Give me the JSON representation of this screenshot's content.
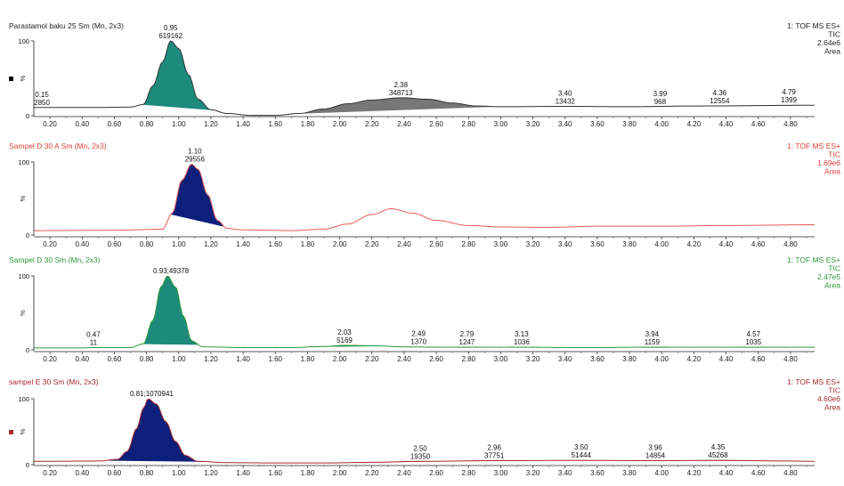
{
  "chart_data": [
    {
      "type": "line",
      "title": "Parastamol baku 25 Sm (Mn, 2x3)",
      "title_color": "#222222",
      "trace_color": "#333333",
      "info": [
        "1: TOF MS ES+",
        "TIC",
        "2.64e6",
        "Area"
      ],
      "info_color": "#222222",
      "marker_color": "#000000",
      "xlim": [
        0.1,
        4.95
      ],
      "ylim": [
        0,
        100
      ],
      "yticks": [
        "100",
        "0"
      ],
      "ylabel": "%",
      "xticks": [
        "0.20",
        "0.40",
        "0.60",
        "0.80",
        "1.00",
        "1.20",
        "1.40",
        "1.60",
        "1.80",
        "2.00",
        "2.20",
        "2.40",
        "2.60",
        "2.80",
        "3.00",
        "3.20",
        "3.40",
        "3.60",
        "3.80",
        "4.00",
        "4.20",
        "4.40",
        "4.60",
        "4.80"
      ],
      "trace": [
        [
          0.1,
          11
        ],
        [
          0.5,
          11
        ],
        [
          0.7,
          11.5
        ],
        [
          0.78,
          15
        ],
        [
          0.84,
          40
        ],
        [
          0.9,
          72
        ],
        [
          0.95,
          100
        ],
        [
          1.0,
          90
        ],
        [
          1.06,
          55
        ],
        [
          1.12,
          22
        ],
        [
          1.2,
          8
        ],
        [
          1.3,
          3
        ],
        [
          1.45,
          0.5
        ],
        [
          1.6,
          0.5
        ],
        [
          1.75,
          3
        ],
        [
          1.9,
          9
        ],
        [
          2.05,
          16
        ],
        [
          2.2,
          21
        ],
        [
          2.38,
          24
        ],
        [
          2.55,
          22
        ],
        [
          2.7,
          17
        ],
        [
          2.85,
          13
        ],
        [
          3.0,
          12
        ],
        [
          3.4,
          12.5
        ],
        [
          3.8,
          12
        ],
        [
          4.2,
          13
        ],
        [
          4.95,
          14
        ]
      ],
      "fills": [
        {
          "range": [
            0.78,
            1.22
          ],
          "color": "#1d8a7c"
        },
        {
          "range": [
            1.75,
            2.95
          ],
          "color": "#777777"
        },
        {
          "range": [
            3.25,
            3.55
          ],
          "color": "#c8742a"
        },
        {
          "range": [
            3.9,
            4.1
          ],
          "color": "#444444"
        },
        {
          "range": [
            4.2,
            4.6
          ],
          "color": "#444444"
        },
        {
          "range": [
            4.65,
            4.9
          ],
          "color": "#444444"
        }
      ],
      "peaks": [
        {
          "x": 0.15,
          "y": 11,
          "rt": "0.15",
          "area": "2850"
        },
        {
          "x": 0.95,
          "y": 100,
          "rt": "0.95",
          "area": "619162"
        },
        {
          "x": 2.38,
          "y": 24,
          "rt": "2.38",
          "area": "348713"
        },
        {
          "x": 3.4,
          "y": 12.5,
          "rt": "3.40",
          "area": "13432"
        },
        {
          "x": 3.99,
          "y": 12,
          "rt": "3.99",
          "area": "968"
        },
        {
          "x": 4.36,
          "y": 13,
          "rt": "4.36",
          "area": "12554"
        },
        {
          "x": 4.79,
          "y": 14,
          "rt": "4.79",
          "area": "1399"
        }
      ]
    },
    {
      "type": "line",
      "title": "Sampel D 30 A Sm (Mn, 2x3)",
      "title_color": "#e0403a",
      "trace_color": "#e85a55",
      "info": [
        "1: TOF MS ES+",
        "TIC",
        "1.69e6",
        "Area"
      ],
      "info_color": "#e0403a",
      "marker_color": "",
      "xlim": [
        0.1,
        4.95
      ],
      "ylim": [
        0,
        100
      ],
      "yticks": [
        "100",
        "0"
      ],
      "ylabel": "%",
      "xticks": [
        "0.20",
        "0.40",
        "0.60",
        "0.80",
        "1.00",
        "1.20",
        "1.40",
        "1.60",
        "1.80",
        "2.00",
        "2.20",
        "2.40",
        "2.60",
        "2.80",
        "3.00",
        "3.20",
        "3.40",
        "3.60",
        "3.80",
        "4.00",
        "4.20",
        "4.40",
        "4.60",
        "4.80"
      ],
      "trace": [
        [
          0.1,
          6
        ],
        [
          0.6,
          6.5
        ],
        [
          0.9,
          8
        ],
        [
          0.96,
          30
        ],
        [
          1.02,
          75
        ],
        [
          1.08,
          97
        ],
        [
          1.12,
          90
        ],
        [
          1.18,
          55
        ],
        [
          1.24,
          20
        ],
        [
          1.3,
          9
        ],
        [
          1.4,
          7
        ],
        [
          1.7,
          6
        ],
        [
          1.9,
          8
        ],
        [
          2.05,
          15
        ],
        [
          2.2,
          28
        ],
        [
          2.32,
          36
        ],
        [
          2.45,
          30
        ],
        [
          2.6,
          20
        ],
        [
          2.8,
          13
        ],
        [
          3.0,
          11
        ],
        [
          3.3,
          10.5
        ],
        [
          3.6,
          12
        ],
        [
          4.0,
          12
        ],
        [
          4.4,
          13
        ],
        [
          4.95,
          14
        ]
      ],
      "fills": [
        {
          "range": [
            0.95,
            1.28
          ],
          "color": "#0c1f7a"
        }
      ],
      "peaks": [
        {
          "x": 1.1,
          "y": 97,
          "rt": "1.10",
          "area": "29556"
        }
      ]
    },
    {
      "type": "line",
      "title": "Sampel D 30 Sm (Mn, 2x3)",
      "title_color": "#2e9a3a",
      "trace_color": "#2e9a3a",
      "info": [
        "1: TOF MS ES+",
        "TIC",
        "2.47e5",
        "Area"
      ],
      "info_color": "#2e9a3a",
      "marker_color": "",
      "xlim": [
        0.1,
        4.95
      ],
      "ylim": [
        0,
        100
      ],
      "yticks": [
        "100",
        "0"
      ],
      "ylabel": "%",
      "xticks": [
        "0.20",
        "0.40",
        "0.60",
        "0.80",
        "1.00",
        "1.20",
        "1.40",
        "1.60",
        "1.80",
        "2.00",
        "2.20",
        "2.40",
        "2.60",
        "2.80",
        "3.00",
        "3.20",
        "3.40",
        "3.60",
        "3.80",
        "4.00",
        "4.20",
        "4.40",
        "4.60",
        "4.80"
      ],
      "trace": [
        [
          0.1,
          2.5
        ],
        [
          0.4,
          2.5
        ],
        [
          0.47,
          3
        ],
        [
          0.7,
          3
        ],
        [
          0.78,
          8
        ],
        [
          0.84,
          40
        ],
        [
          0.89,
          85
        ],
        [
          0.93,
          100
        ],
        [
          0.98,
          85
        ],
        [
          1.03,
          45
        ],
        [
          1.08,
          12
        ],
        [
          1.15,
          4
        ],
        [
          1.4,
          3
        ],
        [
          1.7,
          3
        ],
        [
          1.9,
          4.5
        ],
        [
          2.03,
          6
        ],
        [
          2.2,
          5.5
        ],
        [
          2.4,
          4
        ],
        [
          2.6,
          3.5
        ],
        [
          2.8,
          3.5
        ],
        [
          3.1,
          3.5
        ],
        [
          3.5,
          3
        ],
        [
          3.94,
          3.5
        ],
        [
          4.57,
          3.5
        ],
        [
          4.95,
          3.5
        ]
      ],
      "fills": [
        {
          "range": [
            0.78,
            1.12
          ],
          "color": "#1d8a7c"
        },
        {
          "range": [
            1.85,
            2.25
          ],
          "color": "#2e8a3a"
        },
        {
          "range": [
            2.4,
            2.6
          ],
          "color": "#c8742a"
        },
        {
          "range": [
            2.7,
            2.9
          ],
          "color": "#c8742a"
        },
        {
          "range": [
            3.05,
            3.25
          ],
          "color": "#444444"
        },
        {
          "range": [
            3.85,
            4.05
          ],
          "color": "#444444"
        },
        {
          "range": [
            4.45,
            4.65
          ],
          "color": "#444444"
        }
      ],
      "peaks": [
        {
          "x": 0.47,
          "y": 3,
          "rt": "0.47",
          "area": "11"
        },
        {
          "x": 0.93,
          "y": 100,
          "rt": "0.93",
          "area": "49378",
          "inline": true
        },
        {
          "x": 2.03,
          "y": 6,
          "rt": "2.03",
          "area": "5169"
        },
        {
          "x": 2.49,
          "y": 4,
          "rt": "2.49",
          "area": "1370"
        },
        {
          "x": 2.79,
          "y": 3.5,
          "rt": "2.79",
          "area": "1247"
        },
        {
          "x": 3.13,
          "y": 3.5,
          "rt": "3.13",
          "area": "1036"
        },
        {
          "x": 3.94,
          "y": 3.5,
          "rt": "3.94",
          "area": "1159"
        },
        {
          "x": 4.57,
          "y": 3.5,
          "rt": "4.57",
          "area": "1035"
        }
      ]
    },
    {
      "type": "line",
      "title": "sampel E 30 Sm (Mn, 2x3)",
      "title_color": "#a82a2a",
      "trace_color": "#a82a2a",
      "info": [
        "1: TOF MS ES+",
        "TIC",
        "4.60e6",
        "Area"
      ],
      "info_color": "#a82a2a",
      "marker_color": "#a82a2a",
      "xlim": [
        0.1,
        4.95
      ],
      "ylim": [
        0,
        100
      ],
      "yticks": [
        "100",
        "0"
      ],
      "ylabel": "%",
      "xticks": [
        "0.20",
        "0.40",
        "0.60",
        "0.80",
        "1.00",
        "1.20",
        "1.40",
        "1.60",
        "1.80",
        "2.00",
        "2.20",
        "2.40",
        "2.60",
        "2.80",
        "3.00",
        "3.20",
        "3.40",
        "3.60",
        "3.80",
        "4.00",
        "4.20",
        "4.40",
        "4.60",
        "4.80"
      ],
      "trace": [
        [
          0.1,
          5
        ],
        [
          0.5,
          5.5
        ],
        [
          0.62,
          8
        ],
        [
          0.68,
          20
        ],
        [
          0.74,
          55
        ],
        [
          0.78,
          85
        ],
        [
          0.81,
          100
        ],
        [
          0.86,
          92
        ],
        [
          0.92,
          65
        ],
        [
          0.98,
          35
        ],
        [
          1.04,
          14
        ],
        [
          1.12,
          5
        ],
        [
          1.3,
          3
        ],
        [
          1.6,
          2.5
        ],
        [
          1.9,
          2.5
        ],
        [
          2.2,
          3.5
        ],
        [
          2.5,
          5
        ],
        [
          2.96,
          6
        ],
        [
          3.5,
          6.5
        ],
        [
          3.96,
          6
        ],
        [
          4.35,
          6.5
        ],
        [
          4.8,
          5.5
        ],
        [
          4.95,
          5
        ]
      ],
      "fills": [
        {
          "range": [
            0.55,
            1.15
          ],
          "color": "#0c1f7a"
        },
        {
          "range": [
            2.3,
            2.7
          ],
          "color": "#a86a6a"
        },
        {
          "range": [
            2.75,
            3.15
          ],
          "color": "#8a5a3a"
        },
        {
          "range": [
            3.3,
            3.7
          ],
          "color": "#d9842a"
        },
        {
          "range": [
            3.85,
            4.1
          ],
          "color": "#a82a2a"
        },
        {
          "range": [
            4.2,
            4.55
          ],
          "color": "#2a3a8a"
        },
        {
          "range": [
            4.6,
            4.85
          ],
          "color": "#a86a6a"
        }
      ],
      "peaks": [
        {
          "x": 0.81,
          "y": 100,
          "rt": "0.81",
          "area": "1070941",
          "inline": true
        },
        {
          "x": 2.5,
          "y": 5,
          "rt": "2.50",
          "area": "19350"
        },
        {
          "x": 2.96,
          "y": 6,
          "rt": "2.96",
          "area": "37751"
        },
        {
          "x": 3.5,
          "y": 6.5,
          "rt": "3.50",
          "area": "51444"
        },
        {
          "x": 3.96,
          "y": 6,
          "rt": "3.96",
          "area": "14854"
        },
        {
          "x": 4.35,
          "y": 6.5,
          "rt": "4.35",
          "area": "45268"
        }
      ]
    }
  ]
}
